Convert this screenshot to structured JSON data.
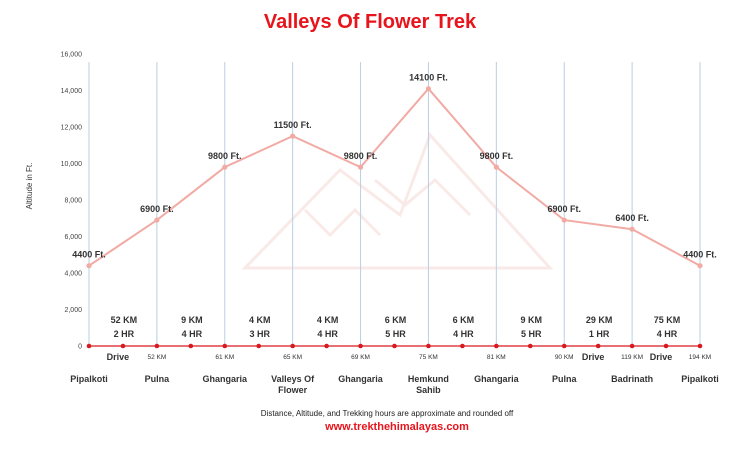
{
  "chart_data": {
    "type": "line",
    "title": "Valleys Of Flower Trek",
    "ylabel": "Altitude in Ft.",
    "ylim": [
      0,
      16000
    ],
    "yticks": [
      "0",
      "2,000",
      "4,000",
      "6,000",
      "8,000",
      "10,000",
      "12,000",
      "14,000",
      "16,000"
    ],
    "ytick_values": [
      0,
      2000,
      4000,
      6000,
      8000,
      10000,
      12000,
      14000,
      16000
    ],
    "points": [
      {
        "place": [
          "Pipalkoti"
        ],
        "altitude": 4400,
        "altitude_label": "4400 Ft.",
        "cumulative": ""
      },
      {
        "place": [
          "Pulna"
        ],
        "altitude": 6900,
        "altitude_label": "6900 Ft.",
        "cumulative": "52 KM"
      },
      {
        "place": [
          "Ghangaria"
        ],
        "altitude": 9800,
        "altitude_label": "9800 Ft.",
        "cumulative": "61 KM"
      },
      {
        "place": [
          "Valleys Of",
          "Flower"
        ],
        "altitude": 11500,
        "altitude_label": "11500 Ft.",
        "cumulative": "65 KM"
      },
      {
        "place": [
          "Ghangaria"
        ],
        "altitude": 9800,
        "altitude_label": "9800 Ft.",
        "cumulative": "69 KM"
      },
      {
        "place": [
          "Hemkund",
          "Sahib"
        ],
        "altitude": 14100,
        "altitude_label": "14100 Ft.",
        "cumulative": "75 KM"
      },
      {
        "place": [
          "Ghangaria"
        ],
        "altitude": 9800,
        "altitude_label": "9800 Ft.",
        "cumulative": "81 KM"
      },
      {
        "place": [
          "Pulna"
        ],
        "altitude": 6900,
        "altitude_label": "6900 Ft.",
        "cumulative": "90 KM"
      },
      {
        "place": [
          "Badrinath"
        ],
        "altitude": 6400,
        "altitude_label": "6400 Ft.",
        "cumulative": "119 KM"
      },
      {
        "place": [
          "Pipalkoti"
        ],
        "altitude": 4400,
        "altitude_label": "4400 Ft.",
        "cumulative": "194 KM"
      }
    ],
    "segments": [
      {
        "distance": "52 KM",
        "time": "2 HR",
        "mode": "Drive"
      },
      {
        "distance": "9 KM",
        "time": "4 HR",
        "mode": ""
      },
      {
        "distance": "4 KM",
        "time": "3 HR",
        "mode": ""
      },
      {
        "distance": "4 KM",
        "time": "4 HR",
        "mode": ""
      },
      {
        "distance": "6 KM",
        "time": "5 HR",
        "mode": ""
      },
      {
        "distance": "6 KM",
        "time": "4 HR",
        "mode": ""
      },
      {
        "distance": "9 KM",
        "time": "5 HR",
        "mode": ""
      },
      {
        "distance": "29 KM",
        "time": "1 HR",
        "mode": "Drive"
      },
      {
        "distance": "75 KM",
        "time": "4 HR",
        "mode": "Drive"
      }
    ],
    "grid": false,
    "legend": "none",
    "colors": {
      "line": "#f2aaa4",
      "marker": "#f2aaa4",
      "baseline": "#d9191f",
      "baseline_dot": "#d9191f",
      "vline": "#b9cfe6",
      "title": "#e8141c"
    }
  },
  "footer": {
    "note": "Distance, Altitude, and Trekking hours are approximate and rounded off",
    "website": "www.trekthehimalayas.com"
  }
}
